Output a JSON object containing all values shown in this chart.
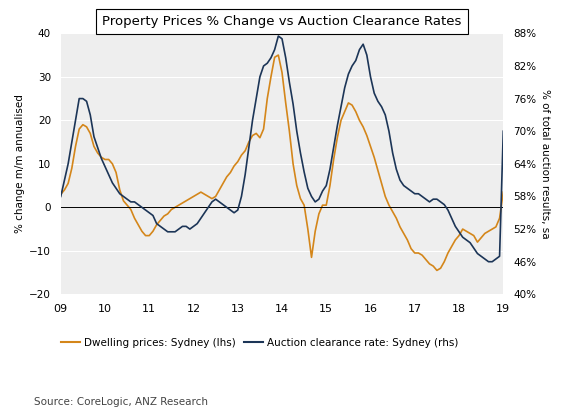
{
  "title": "Property Prices % Change vs Auction Clearance Rates",
  "ylabel_left": "% change m/m annualised",
  "ylabel_right": "% of total auction results, sa",
  "source": "Source: CoreLogic, ANZ Research",
  "legend_dwelling": "Dwelling prices: Sydney (lhs)",
  "legend_auction": "Auction clearance rate: Sydney (rhs)",
  "dwelling_color": "#D4861A",
  "auction_color": "#1C3557",
  "ylim_left": [
    -20,
    40
  ],
  "ylim_right": [
    40,
    88
  ],
  "yticks_left": [
    -20,
    -10,
    0,
    10,
    20,
    30,
    40
  ],
  "yticks_right": [
    40,
    46,
    52,
    58,
    64,
    70,
    76,
    82,
    88
  ],
  "ytick_right_labels": [
    "40%",
    "46%",
    "52%",
    "58%",
    "64%",
    "70%",
    "76%",
    "82%",
    "88%"
  ],
  "xtick_labels": [
    "09",
    "10",
    "11",
    "12",
    "13",
    "14",
    "15",
    "16",
    "17",
    "18",
    "19"
  ],
  "background_color": "#eeeeee",
  "dwelling_y": [
    3.0,
    4.0,
    5.5,
    9.0,
    14.0,
    18.0,
    19.0,
    18.5,
    17.0,
    14.0,
    12.5,
    11.5,
    11.0,
    11.0,
    10.0,
    8.0,
    4.0,
    1.5,
    0.5,
    -0.5,
    -2.5,
    -4.0,
    -5.5,
    -6.5,
    -6.5,
    -5.5,
    -4.0,
    -3.0,
    -2.0,
    -1.5,
    -0.5,
    0.0,
    0.5,
    1.0,
    1.5,
    2.0,
    2.5,
    3.0,
    3.5,
    3.0,
    2.5,
    2.0,
    2.5,
    4.0,
    5.5,
    7.0,
    8.0,
    9.5,
    10.5,
    12.0,
    13.0,
    15.0,
    16.5,
    17.0,
    16.0,
    18.0,
    25.0,
    30.0,
    34.5,
    35.0,
    31.0,
    24.0,
    17.5,
    10.0,
    5.0,
    2.0,
    0.5,
    -5.0,
    -11.5,
    -5.5,
    -1.5,
    0.5,
    0.5,
    5.0,
    11.0,
    16.0,
    20.0,
    22.0,
    24.0,
    23.5,
    22.0,
    20.0,
    18.5,
    16.5,
    14.0,
    11.5,
    8.5,
    5.5,
    2.5,
    0.5,
    -1.0,
    -2.5,
    -4.5,
    -6.0,
    -7.5,
    -9.5,
    -10.5,
    -10.5,
    -11.0,
    -12.0,
    -13.0,
    -13.5,
    -14.5,
    -14.0,
    -12.5,
    -10.5,
    -9.0,
    -7.5,
    -6.5,
    -5.0,
    -5.5,
    -6.0,
    -6.5,
    -8.0,
    -7.0,
    -6.0,
    -5.5,
    -5.0,
    -4.5,
    -2.5,
    3.5
  ],
  "auction_y": [
    58.0,
    61.0,
    64.0,
    68.0,
    72.0,
    76.0,
    76.0,
    75.5,
    73.0,
    69.0,
    67.0,
    65.0,
    63.5,
    62.0,
    60.5,
    59.5,
    58.5,
    58.0,
    57.5,
    57.0,
    57.0,
    56.5,
    56.0,
    55.5,
    55.0,
    54.5,
    53.0,
    52.5,
    52.0,
    51.5,
    51.5,
    51.5,
    52.0,
    52.5,
    52.5,
    52.0,
    52.5,
    53.0,
    54.0,
    55.0,
    56.0,
    57.0,
    57.5,
    57.0,
    56.5,
    56.0,
    55.5,
    55.0,
    55.5,
    58.0,
    62.0,
    67.0,
    72.0,
    76.0,
    80.0,
    82.0,
    82.5,
    83.5,
    85.0,
    87.5,
    87.0,
    83.5,
    79.0,
    75.0,
    70.0,
    66.0,
    62.5,
    59.5,
    58.0,
    57.0,
    57.5,
    59.0,
    60.0,
    63.0,
    67.0,
    71.0,
    74.5,
    78.0,
    80.5,
    82.0,
    83.0,
    85.0,
    86.0,
    84.0,
    80.0,
    77.0,
    75.5,
    74.5,
    73.0,
    70.0,
    66.0,
    63.0,
    61.0,
    60.0,
    59.5,
    59.0,
    58.5,
    58.5,
    58.0,
    57.5,
    57.0,
    57.5,
    57.5,
    57.0,
    56.5,
    55.5,
    54.0,
    52.5,
    51.5,
    50.5,
    50.0,
    49.5,
    48.5,
    47.5,
    47.0,
    46.5,
    46.0,
    46.0,
    46.5,
    47.0,
    70.0
  ]
}
